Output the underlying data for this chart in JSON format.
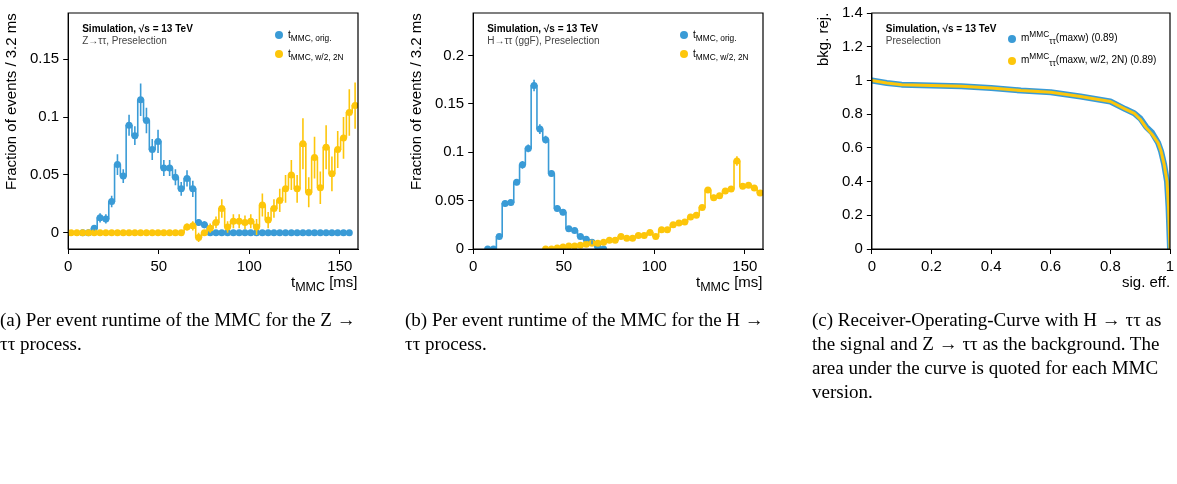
{
  "chart_data": [
    {
      "type": "step",
      "title": "(a) Per event runtime of the MMC for the Z → ττ process.",
      "xlabel": "t$_{MMC}$ [ms]",
      "ylabel": "Fraction of events / 3.2 ms",
      "annotations": [
        "Simulation, √s = 13 TeV",
        "Z→ττ, Preselection"
      ],
      "legend": "top right",
      "marker": "circle",
      "grid": false,
      "xlim": [
        0,
        160
      ],
      "xticks": [
        0,
        50,
        100,
        150
      ],
      "ylim": [
        -0.014,
        0.19
      ],
      "yticks": [
        0,
        0.05,
        0.1,
        0.15
      ],
      "series": [
        {
          "name": "t$_{MMC, orig.}$",
          "color": "#3a9bd6",
          "x": [
            8,
            11.2,
            14.4,
            17.6,
            20.8,
            24,
            27.2,
            30.4,
            33.6,
            36.8,
            40,
            43.2,
            46.4,
            49.6,
            52.8,
            56,
            59.2,
            62.4,
            65.6,
            68.8,
            72,
            75.2,
            78.4,
            81.6,
            84.8,
            88,
            91.2,
            94.4,
            97.6,
            100.8,
            104,
            107.2,
            110.4,
            113.6,
            116.8,
            120,
            123.2,
            126.4,
            129.6,
            132.8,
            136,
            139.2,
            142.4,
            145.6,
            148.8,
            152,
            155.2
          ],
          "values": [
            0,
            0,
            0.004,
            0.013,
            0.012,
            0.027,
            0.059,
            0.049,
            0.093,
            0.084,
            0.115,
            0.097,
            0.072,
            0.079,
            0.056,
            0.056,
            0.048,
            0.038,
            0.047,
            0.038,
            0.009,
            0.007,
            0,
            0,
            0,
            0,
            0,
            0,
            0,
            0,
            0,
            0,
            0,
            0,
            0,
            0,
            0,
            0,
            0,
            0,
            0,
            0,
            0,
            0,
            0,
            0,
            0
          ],
          "errors": [
            null,
            null,
            0.002,
            0.004,
            0.004,
            0.005,
            0.009,
            0.006,
            0.009,
            0.008,
            0.014,
            0.011,
            0.009,
            0.01,
            0.007,
            0.007,
            0.007,
            0.006,
            0.007,
            0.007,
            0.003,
            0.003,
            null,
            null,
            null,
            null,
            null,
            null,
            null,
            null,
            null,
            null,
            null,
            null,
            null,
            null,
            null,
            null,
            null,
            null,
            null,
            null,
            null,
            null,
            null,
            null,
            null
          ]
        },
        {
          "name": "t$_{MMC, w/2, 2N}$",
          "color": "#fdc60b",
          "x": [
            1.6,
            4.8,
            8,
            11.2,
            14.4,
            17.6,
            20.8,
            24,
            27.2,
            30.4,
            33.6,
            36.8,
            40,
            43.2,
            46.4,
            49.6,
            52.8,
            56,
            59.2,
            62.4,
            65.6,
            68.8,
            72,
            75.2,
            78.4,
            81.6,
            84.8,
            88,
            91.2,
            94.4,
            97.6,
            100.8,
            104,
            107.2,
            110.4,
            113.6,
            116.8,
            120,
            123.2,
            126.4,
            129.6,
            132.8,
            136,
            139.2,
            142.4,
            145.6,
            148.8,
            152,
            155.2,
            158.4
          ],
          "values": [
            0,
            0,
            0,
            0,
            0,
            0,
            0,
            0,
            0,
            0,
            0,
            0,
            0,
            0,
            0,
            0,
            0,
            0,
            0,
            0,
            0.005,
            0.006,
            -0.004,
            0,
            0.004,
            0.009,
            0.021,
            0.005,
            0.01,
            0.01,
            0.009,
            0.01,
            0.005,
            0.024,
            0.011,
            0.021,
            0.028,
            0.038,
            0.05,
            0.038,
            0.077,
            0.035,
            0.065,
            0.039,
            0.074,
            0.051,
            0.072,
            0.082,
            0.104,
            0.11
          ],
          "errors": [
            null,
            null,
            null,
            null,
            null,
            null,
            null,
            null,
            null,
            null,
            null,
            null,
            null,
            null,
            null,
            null,
            null,
            null,
            null,
            null,
            0.003,
            0.004,
            0.004,
            null,
            0.004,
            0.005,
            0.008,
            0.005,
            0.006,
            0.006,
            0.006,
            0.006,
            0.007,
            0.01,
            0.007,
            0.008,
            0.01,
            0.012,
            0.013,
            0.012,
            0.022,
            0.013,
            0.018,
            0.014,
            0.019,
            0.015,
            0.016,
            0.018,
            0.02,
            0.02
          ]
        }
      ]
    },
    {
      "type": "step",
      "title": "(b) Per event runtime of the MMC for the H → ττ process.",
      "xlabel": "t$_{MMC}$ [ms]",
      "ylabel": "Fraction of events / 3.2 ms",
      "annotations": [
        "Simulation, √s = 13 TeV",
        "H→ττ (ggF), Preselection"
      ],
      "legend": "top right",
      "marker": "circle",
      "grid": false,
      "xlim": [
        0,
        160
      ],
      "xticks": [
        0,
        50,
        100,
        150
      ],
      "ylim": [
        0,
        0.244
      ],
      "yticks": [
        0,
        0.05,
        0.1,
        0.15,
        0.2
      ],
      "series": [
        {
          "name": "t$_{MMC, orig.}$",
          "color": "#3a9bd6",
          "x": [
            8,
            11.2,
            14.4,
            17.6,
            20.8,
            24,
            27.2,
            30.4,
            33.6,
            36.8,
            40,
            43.2,
            46.4,
            49.6,
            52.8,
            56,
            59.2,
            62.4,
            65.6,
            68.8,
            72
          ],
          "values": [
            0,
            0,
            0.013,
            0.047,
            0.048,
            0.069,
            0.087,
            0.104,
            0.169,
            0.124,
            0.113,
            0.078,
            0.042,
            0.038,
            0.021,
            0.019,
            0.013,
            0.01,
            0.007,
            0.002,
            0
          ],
          "errors": [
            null,
            null,
            0.002,
            0.003,
            0.003,
            0.003,
            0.004,
            0.004,
            0.006,
            0.005,
            0.004,
            0.003,
            0.003,
            0.003,
            0.002,
            0.002,
            0.002,
            0.002,
            0.002,
            null,
            null
          ]
        },
        {
          "name": "t$_{MMC, w/2, 2N}$",
          "color": "#fdc60b",
          "x": [
            40,
            43.2,
            46.4,
            49.6,
            52.8,
            56,
            59.2,
            62.4,
            65.6,
            68.8,
            72,
            75.2,
            78.4,
            81.6,
            84.8,
            88,
            91.2,
            94.4,
            97.6,
            100.8,
            104,
            107.2,
            110.4,
            113.6,
            116.8,
            120,
            123.2,
            126.4,
            129.6,
            132.8,
            136,
            139.2,
            142.4,
            145.6,
            148.8,
            152,
            155.2,
            158.4
          ],
          "values": [
            0,
            0,
            0.001,
            0.002,
            0.003,
            0.003,
            0.004,
            0.005,
            0.006,
            0.006,
            0.007,
            0.009,
            0.009,
            0.013,
            0.011,
            0.011,
            0.014,
            0.014,
            0.017,
            0.013,
            0.02,
            0.02,
            0.025,
            0.027,
            0.028,
            0.033,
            0.035,
            0.043,
            0.061,
            0.053,
            0.055,
            0.06,
            0.062,
            0.091,
            0.065,
            0.066,
            0.063,
            0.058
          ],
          "errors": [
            null,
            null,
            null,
            null,
            null,
            null,
            null,
            null,
            null,
            null,
            null,
            null,
            null,
            0.002,
            0.002,
            0.002,
            0.002,
            0.002,
            0.002,
            0.002,
            0.002,
            0.002,
            0.002,
            0.002,
            0.002,
            0.002,
            0.002,
            0.002,
            0.003,
            0.003,
            0.003,
            0.003,
            0.003,
            0.005,
            0.003,
            0.003,
            0.003,
            0.003
          ]
        }
      ]
    },
    {
      "type": "line",
      "title": "(c) Receiver-Operating-Curve with H → ττ as the signal and Z → ττ as the background. The area under the curve is quoted for each MMC version.",
      "xlabel": "sig. eff.",
      "ylabel": "bkg. rej.",
      "annotations": [
        "Simulation, √s = 13 TeV",
        "Preselection"
      ],
      "legend": "top right",
      "grid": false,
      "xlim": [
        0,
        1
      ],
      "xticks": [
        0,
        0.2,
        0.4,
        0.6,
        0.8,
        1
      ],
      "ylim": [
        0,
        1.4
      ],
      "yticks": [
        0,
        0.2,
        0.4,
        0.6,
        0.8,
        1,
        1.2,
        1.4
      ],
      "series": [
        {
          "name": "m$^{MMC}$$_{ττ}$(maxw) (0.89)",
          "color": "#3a9bd6",
          "x": [
            0,
            0.05,
            0.1,
            0.2,
            0.3,
            0.4,
            0.5,
            0.6,
            0.7,
            0.8,
            0.85,
            0.88,
            0.9,
            0.92,
            0.94,
            0.96,
            0.97,
            0.98,
            0.99,
            0.995,
            1
          ],
          "values": [
            1,
            0.985,
            0.975,
            0.97,
            0.965,
            0.955,
            0.94,
            0.93,
            0.905,
            0.875,
            0.83,
            0.805,
            0.775,
            0.725,
            0.69,
            0.63,
            0.58,
            0.505,
            0.4,
            0.25,
            0
          ]
        },
        {
          "name": "m$^{MMC}$$_{ττ}$(maxw, w/2, 2N) (0.89)",
          "color": "#fdc60b",
          "x": [
            0,
            0.05,
            0.1,
            0.2,
            0.3,
            0.4,
            0.5,
            0.6,
            0.7,
            0.8,
            0.85,
            0.88,
            0.9,
            0.92,
            0.94,
            0.96,
            0.97,
            0.98,
            0.99,
            0.995,
            1
          ],
          "values": [
            1,
            0.985,
            0.975,
            0.97,
            0.965,
            0.955,
            0.94,
            0.93,
            0.905,
            0.875,
            0.83,
            0.805,
            0.77,
            0.72,
            0.68,
            0.63,
            0.58,
            0.505,
            0.4,
            0.25,
            0
          ]
        }
      ]
    }
  ]
}
